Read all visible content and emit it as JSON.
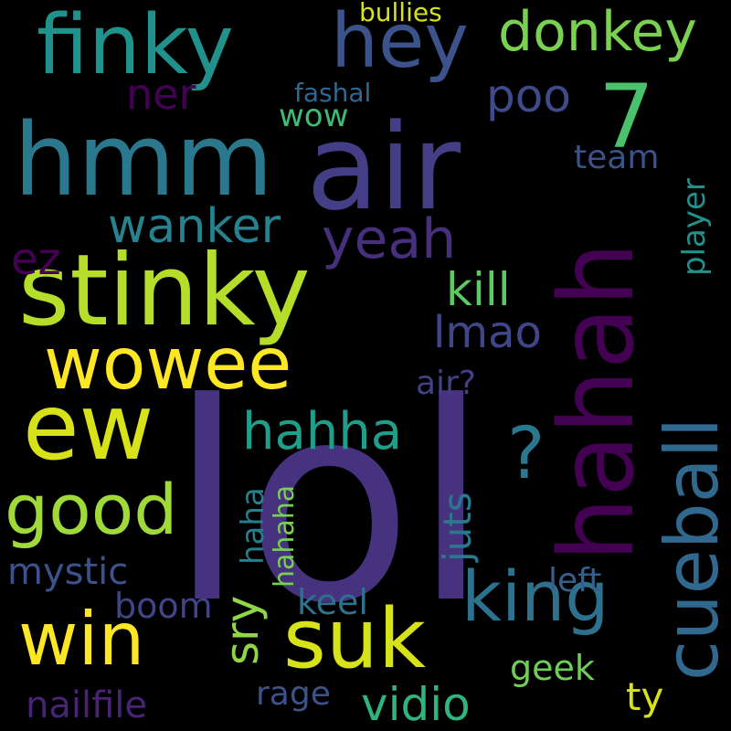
{
  "words": [
    {
      "text": "lol",
      "color": "#46327e"
    },
    {
      "text": "air",
      "color": "#433e85"
    },
    {
      "text": "hmm",
      "color": "#2a788e"
    },
    {
      "text": "stinky",
      "color": "#b5de2b"
    },
    {
      "text": "finky",
      "color": "#21918c"
    },
    {
      "text": "hey",
      "color": "#3b528b"
    },
    {
      "text": "hahah",
      "color": "#440154"
    },
    {
      "text": "ew",
      "color": "#d8e219"
    },
    {
      "text": "wowee",
      "color": "#fde725"
    },
    {
      "text": "cueball",
      "color": "#31688e"
    },
    {
      "text": "suk",
      "color": "#d8e219"
    },
    {
      "text": "win",
      "color": "#fde725"
    },
    {
      "text": "king",
      "color": "#2c728e"
    },
    {
      "text": "good",
      "color": "#a0da39"
    },
    {
      "text": "donkey",
      "color": "#7ad151"
    },
    {
      "text": "7",
      "color": "#4ac16d"
    },
    {
      "text": "?",
      "color": "#2a788e"
    },
    {
      "text": "yeah",
      "color": "#472f7d"
    },
    {
      "text": "wanker",
      "color": "#26828e"
    },
    {
      "text": "kill",
      "color": "#5ec962"
    },
    {
      "text": "hahha",
      "color": "#1f9e89"
    },
    {
      "text": "lmao",
      "color": "#404688"
    },
    {
      "text": "poo",
      "color": "#3e4a89"
    },
    {
      "text": "ner",
      "color": "#440154"
    },
    {
      "text": "vidio",
      "color": "#2fb47c"
    },
    {
      "text": "sry",
      "color": "#8fd744"
    },
    {
      "text": "mystic",
      "color": "#3b528b"
    },
    {
      "text": "nailfile",
      "color": "#482475"
    },
    {
      "text": "boom",
      "color": "#414487"
    },
    {
      "text": "keel",
      "color": "#2c728e"
    },
    {
      "text": "rage",
      "color": "#3b528b"
    },
    {
      "text": "geek",
      "color": "#6ece58"
    },
    {
      "text": "ty",
      "color": "#d8e219"
    },
    {
      "text": "left",
      "color": "#355f8d"
    },
    {
      "text": "juts",
      "color": "#2a788e"
    },
    {
      "text": "haha",
      "color": "#277f8e"
    },
    {
      "text": "hahaha",
      "color": "#7ad151"
    },
    {
      "text": "air?",
      "color": "#424086"
    },
    {
      "text": "wow",
      "color": "#3fbc73"
    },
    {
      "text": "fashal",
      "color": "#31688e"
    },
    {
      "text": "team",
      "color": "#3b528b"
    },
    {
      "text": "player",
      "color": "#21918c"
    },
    {
      "text": "ez",
      "color": "#440154"
    },
    {
      "text": "bullies",
      "color": "#d8e219"
    }
  ]
}
